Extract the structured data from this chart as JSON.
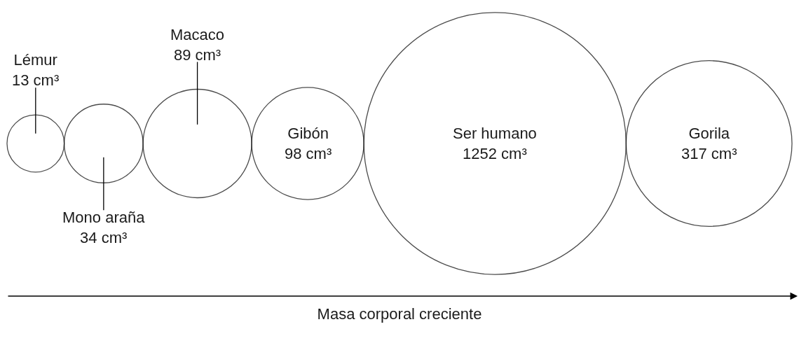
{
  "chart_data": {
    "type": "other",
    "xlabel": "Masa corporal creciente",
    "color": "#000000",
    "categories": [
      "Lémur",
      "Mono araña",
      "Macaco",
      "Gibón",
      "Ser humano",
      "Gorila"
    ],
    "values": [
      13,
      34,
      89,
      98,
      1252,
      317
    ],
    "value_labels": [
      "13 cm³",
      "34 cm³",
      "89 cm³",
      "98 cm³",
      "1252 cm³",
      "317 cm³"
    ]
  }
}
